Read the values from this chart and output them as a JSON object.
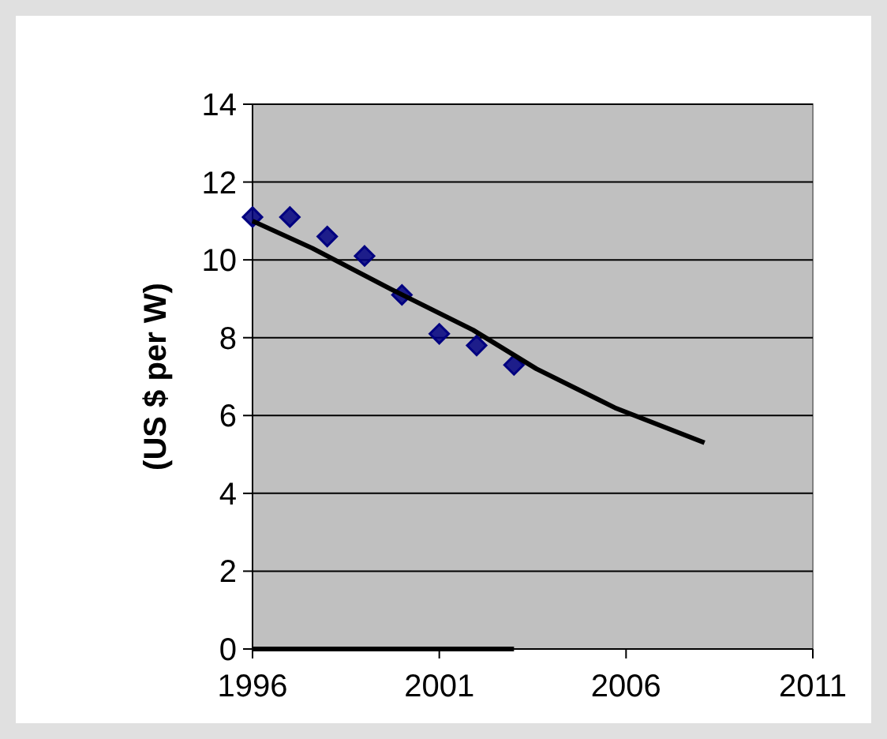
{
  "chart_data": {
    "type": "scatter",
    "ylabel": "(US $ per W)",
    "xlim": [
      1996,
      2011
    ],
    "xticks": [
      1996,
      2001,
      2006,
      2011
    ],
    "ylim": [
      0,
      14
    ],
    "yticks": [
      0,
      2,
      4,
      6,
      8,
      10,
      12,
      14
    ],
    "grid": "y",
    "series": [
      {
        "color": "#000080",
        "marker": "diamond",
        "x": [
          1996,
          1997,
          1998,
          1999,
          2000,
          2001,
          2002,
          2003
        ],
        "values": [
          11.1,
          11.1,
          10.6,
          10.1,
          9.1,
          8.1,
          7.8,
          7.3
        ]
      },
      {
        "type": "line",
        "marker": "none",
        "color": "#000000",
        "x": [
          1996,
          1997.6,
          1999.7,
          2001.9,
          2003.6,
          2005.7,
          2008.1
        ],
        "values": [
          11.0,
          10.3,
          9.25,
          8.2,
          7.2,
          6.2,
          5.3
        ]
      },
      {
        "type": "line",
        "marker": "none",
        "color": "#000000",
        "x": [
          1996,
          2003
        ],
        "values": [
          0,
          0
        ]
      }
    ]
  }
}
